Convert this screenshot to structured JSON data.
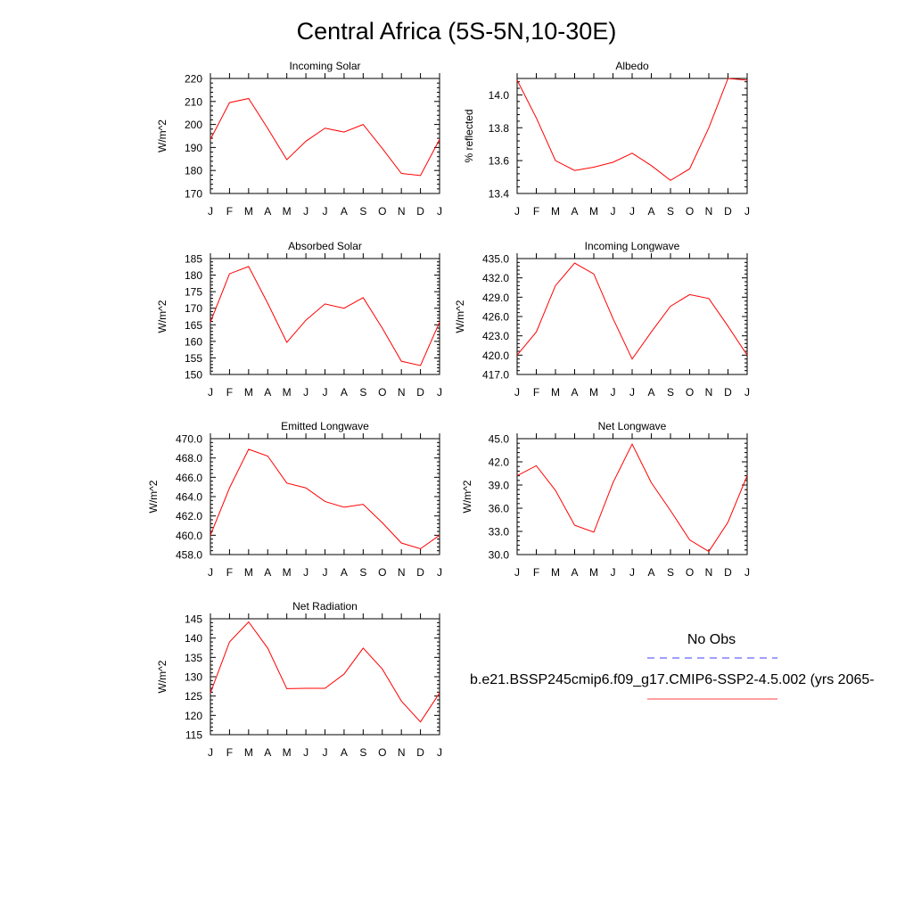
{
  "figure": {
    "title": "Central Africa (5S-5N,10-30E)"
  },
  "months": [
    "J",
    "F",
    "M",
    "A",
    "M",
    "J",
    "J",
    "A",
    "S",
    "O",
    "N",
    "D",
    "J"
  ],
  "colors": {
    "model_line": "#ff0000",
    "obs_line": "#0000ff",
    "axis": "#000000"
  },
  "legend": {
    "obs_label": "No Obs",
    "model_label": "b.e21.BSSP245cmip6.f09_g17.CMIP6-SSP2-4.5.002 (yrs 2065-"
  },
  "chart_data": [
    {
      "type": "line",
      "title": "Incoming Solar",
      "ylabel": "W/m^2",
      "ylim": [
        170,
        220
      ],
      "yticks": [
        170,
        180,
        190,
        200,
        210,
        220
      ],
      "ytick_labels": [
        "170",
        "180",
        "190",
        "200",
        "210",
        "220"
      ],
      "categories": [
        "J",
        "F",
        "M",
        "A",
        "M",
        "J",
        "J",
        "A",
        "S",
        "O",
        "N",
        "D",
        "J"
      ],
      "series": [
        {
          "values": [
            193.5,
            209.5,
            211.3,
            198.3,
            184.7,
            192.7,
            198.4,
            196.7,
            200.0,
            189.6,
            178.7,
            177.8,
            193.5
          ]
        }
      ]
    },
    {
      "type": "line",
      "title": "Albedo",
      "ylabel": "% reflected",
      "ylim": [
        13.4,
        14.1
      ],
      "yticks": [
        13.4,
        13.6,
        13.8,
        14.0
      ],
      "ytick_labels": [
        "13.4",
        "13.6",
        "13.8",
        "14.0"
      ],
      "categories": [
        "J",
        "F",
        "M",
        "A",
        "M",
        "J",
        "J",
        "A",
        "S",
        "O",
        "N",
        "D",
        "J"
      ],
      "series": [
        {
          "values": [
            14.09,
            13.86,
            13.6,
            13.54,
            13.56,
            13.59,
            13.645,
            13.57,
            13.48,
            13.55,
            13.8,
            14.1,
            14.09
          ]
        }
      ]
    },
    {
      "type": "line",
      "title": "Absorbed Solar",
      "ylabel": "W/m^2",
      "ylim": [
        150,
        185
      ],
      "yticks": [
        150,
        155,
        160,
        165,
        170,
        175,
        180,
        185
      ],
      "ytick_labels": [
        "150",
        "155",
        "160",
        "165",
        "170",
        "175",
        "180",
        "185"
      ],
      "categories": [
        "J",
        "F",
        "M",
        "A",
        "M",
        "J",
        "J",
        "A",
        "S",
        "O",
        "N",
        "D",
        "J"
      ],
      "series": [
        {
          "values": [
            165.8,
            180.4,
            182.6,
            171.5,
            159.7,
            166.4,
            171.3,
            170.0,
            173.2,
            164.0,
            154.0,
            152.7,
            165.8
          ]
        }
      ]
    },
    {
      "type": "line",
      "title": "Incoming Longwave",
      "ylabel": "W/m^2",
      "ylim": [
        417,
        435
      ],
      "yticks": [
        417,
        420,
        423,
        426,
        429,
        432,
        435
      ],
      "ytick_labels": [
        "417.0",
        "420.0",
        "423.0",
        "426.0",
        "429.0",
        "432.0",
        "435.0"
      ],
      "categories": [
        "J",
        "F",
        "M",
        "A",
        "M",
        "J",
        "J",
        "A",
        "S",
        "O",
        "N",
        "D",
        "J"
      ],
      "series": [
        {
          "values": [
            420.0,
            423.6,
            430.8,
            434.3,
            432.6,
            425.7,
            419.4,
            423.6,
            427.6,
            429.4,
            428.8,
            424.5,
            420.0
          ]
        }
      ]
    },
    {
      "type": "line",
      "title": "Emitted Longwave",
      "ylabel": "W/m^2",
      "ylim": [
        458,
        470
      ],
      "yticks": [
        458,
        460,
        462,
        464,
        466,
        468,
        470
      ],
      "ytick_labels": [
        "458.0",
        "460.0",
        "462.0",
        "464.0",
        "466.0",
        "468.0",
        "470.0"
      ],
      "categories": [
        "J",
        "F",
        "M",
        "A",
        "M",
        "J",
        "J",
        "A",
        "S",
        "O",
        "N",
        "D",
        "J"
      ],
      "series": [
        {
          "values": [
            460.0,
            464.9,
            468.9,
            468.2,
            465.4,
            464.9,
            463.5,
            462.9,
            463.2,
            461.3,
            459.2,
            458.6,
            460.0
          ]
        }
      ]
    },
    {
      "type": "line",
      "title": "Net Longwave",
      "ylabel": "W/m^2",
      "ylim": [
        30,
        45
      ],
      "yticks": [
        30,
        33,
        36,
        39,
        42,
        45
      ],
      "ytick_labels": [
        "30.0",
        "33.0",
        "36.0",
        "39.0",
        "42.0",
        "45.0"
      ],
      "categories": [
        "J",
        "F",
        "M",
        "A",
        "M",
        "J",
        "J",
        "A",
        "S",
        "O",
        "N",
        "D",
        "J"
      ],
      "series": [
        {
          "values": [
            40.2,
            41.5,
            38.3,
            33.8,
            32.9,
            39.3,
            44.3,
            39.3,
            35.7,
            31.9,
            30.4,
            34.2,
            40.2
          ]
        }
      ]
    },
    {
      "type": "line",
      "title": "Net Radiation",
      "ylabel": "W/m^2",
      "ylim": [
        115,
        145
      ],
      "yticks": [
        115,
        120,
        125,
        130,
        135,
        140,
        145
      ],
      "ytick_labels": [
        "115",
        "120",
        "125",
        "130",
        "135",
        "140",
        "145"
      ],
      "categories": [
        "J",
        "F",
        "M",
        "A",
        "M",
        "J",
        "J",
        "A",
        "S",
        "O",
        "N",
        "D",
        "J"
      ],
      "series": [
        {
          "values": [
            125.8,
            139.0,
            144.2,
            137.4,
            126.9,
            127.0,
            127.0,
            130.7,
            137.4,
            132.0,
            123.7,
            118.3,
            125.8
          ]
        }
      ]
    }
  ]
}
